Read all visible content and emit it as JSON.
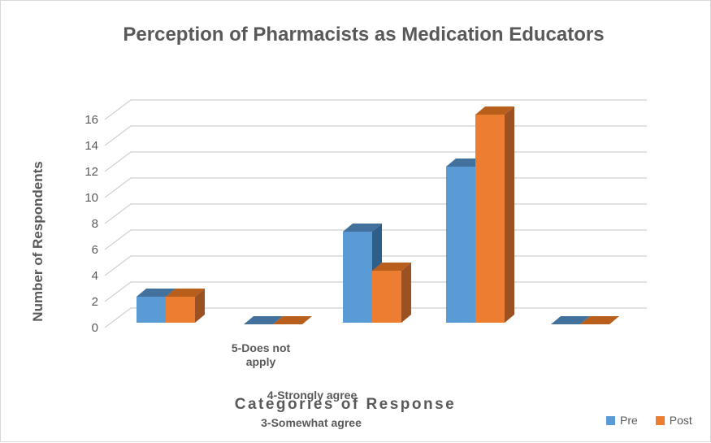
{
  "chart_data": {
    "type": "bar",
    "variant": "3d-clustered-column",
    "title": "Perception of Pharmacists as Medication Educators",
    "xlabel": "Categories of Response",
    "ylabel": "Number of Respondents",
    "categories": [
      "",
      "5-Does not apply",
      "4-Strongly agree",
      "3-Somewhat agree",
      ""
    ],
    "series": [
      {
        "name": "Pre",
        "color": "#5B9BD5",
        "values": [
          2,
          0,
          7,
          12,
          0
        ]
      },
      {
        "name": "Post",
        "color": "#ED7D31",
        "values": [
          2,
          0,
          4,
          16,
          0
        ]
      }
    ],
    "ylim": [
      0,
      16
    ],
    "yticks": [
      0,
      2,
      4,
      6,
      8,
      10,
      12,
      14,
      16
    ],
    "grid": true,
    "legend_position": "bottom-right"
  },
  "colors": {
    "pre_front": "#5B9BD5",
    "pre_top": "#41719C",
    "pre_side": "#2E5F8A",
    "post_front": "#ED7D31",
    "post_top": "#B85F1E",
    "post_side": "#9C5122",
    "gridline": "#C6C6C6",
    "text": "#595959",
    "border": "#D9D9D9",
    "background": "#FFFFFF"
  }
}
